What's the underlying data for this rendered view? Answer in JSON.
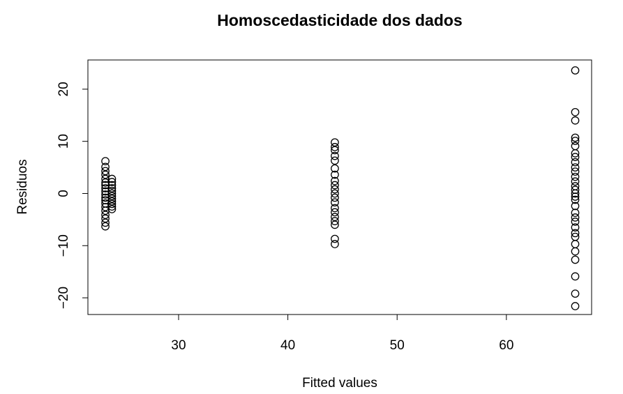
{
  "chart_data": {
    "type": "scatter",
    "title": "Homoscedasticidade dos dados",
    "xlabel": "Fitted values",
    "ylabel": "Residuos",
    "xlim": [
      21.7,
      67.8
    ],
    "ylim": [
      -23.2,
      25.6
    ],
    "xticks": [
      30,
      40,
      50,
      60
    ],
    "yticks": [
      -20,
      -10,
      0,
      10,
      20
    ],
    "grid": false,
    "legend": "none",
    "points": [
      {
        "x": 23.3,
        "y": 6.2
      },
      {
        "x": 23.3,
        "y": 5.1
      },
      {
        "x": 23.3,
        "y": 4.3
      },
      {
        "x": 23.3,
        "y": 3.6
      },
      {
        "x": 23.3,
        "y": 2.8
      },
      {
        "x": 23.3,
        "y": 2.1
      },
      {
        "x": 23.3,
        "y": 1.6
      },
      {
        "x": 23.3,
        "y": 1.0
      },
      {
        "x": 23.3,
        "y": 0.4
      },
      {
        "x": 23.3,
        "y": -0.2
      },
      {
        "x": 23.3,
        "y": -0.8
      },
      {
        "x": 23.3,
        "y": -1.3
      },
      {
        "x": 23.3,
        "y": -1.9
      },
      {
        "x": 23.3,
        "y": -2.6
      },
      {
        "x": 23.3,
        "y": -3.3
      },
      {
        "x": 23.3,
        "y": -4.1
      },
      {
        "x": 23.3,
        "y": -4.8
      },
      {
        "x": 23.3,
        "y": -5.6
      },
      {
        "x": 23.3,
        "y": -6.3
      },
      {
        "x": 23.9,
        "y": 2.8
      },
      {
        "x": 23.9,
        "y": 2.2
      },
      {
        "x": 23.9,
        "y": 1.6
      },
      {
        "x": 23.9,
        "y": 1.0
      },
      {
        "x": 23.9,
        "y": 0.5
      },
      {
        "x": 23.9,
        "y": 0.0
      },
      {
        "x": 23.9,
        "y": -0.5
      },
      {
        "x": 23.9,
        "y": -1.0
      },
      {
        "x": 23.9,
        "y": -1.5
      },
      {
        "x": 23.9,
        "y": -2.0
      },
      {
        "x": 23.9,
        "y": -2.5
      },
      {
        "x": 23.9,
        "y": -3.0
      },
      {
        "x": 44.3,
        "y": 9.8
      },
      {
        "x": 44.3,
        "y": 8.9
      },
      {
        "x": 44.3,
        "y": 8.3
      },
      {
        "x": 44.3,
        "y": 7.2
      },
      {
        "x": 44.3,
        "y": 6.3
      },
      {
        "x": 44.3,
        "y": 4.8
      },
      {
        "x": 44.3,
        "y": 3.6
      },
      {
        "x": 44.3,
        "y": 2.4
      },
      {
        "x": 44.3,
        "y": 1.6
      },
      {
        "x": 44.3,
        "y": 0.8
      },
      {
        "x": 44.3,
        "y": 0.0
      },
      {
        "x": 44.3,
        "y": -0.8
      },
      {
        "x": 44.3,
        "y": -1.7
      },
      {
        "x": 44.3,
        "y": -2.8
      },
      {
        "x": 44.3,
        "y": -3.6
      },
      {
        "x": 44.3,
        "y": -4.5
      },
      {
        "x": 44.3,
        "y": -5.3
      },
      {
        "x": 44.3,
        "y": -6.0
      },
      {
        "x": 44.3,
        "y": -8.7
      },
      {
        "x": 44.3,
        "y": -9.7
      },
      {
        "x": 66.3,
        "y": 23.6
      },
      {
        "x": 66.3,
        "y": 15.6
      },
      {
        "x": 66.3,
        "y": 14.0
      },
      {
        "x": 66.3,
        "y": 10.7
      },
      {
        "x": 66.3,
        "y": 10.1
      },
      {
        "x": 66.3,
        "y": 9.1
      },
      {
        "x": 66.3,
        "y": 7.7
      },
      {
        "x": 66.3,
        "y": 7.0
      },
      {
        "x": 66.3,
        "y": 6.0
      },
      {
        "x": 66.3,
        "y": 5.0
      },
      {
        "x": 66.3,
        "y": 4.2
      },
      {
        "x": 66.3,
        "y": 3.2
      },
      {
        "x": 66.3,
        "y": 2.3
      },
      {
        "x": 66.3,
        "y": 1.4
      },
      {
        "x": 66.3,
        "y": 0.7
      },
      {
        "x": 66.3,
        "y": 0.0
      },
      {
        "x": 66.3,
        "y": -0.6
      },
      {
        "x": 66.3,
        "y": -1.2
      },
      {
        "x": 66.3,
        "y": -2.4
      },
      {
        "x": 66.3,
        "y": -3.7
      },
      {
        "x": 66.3,
        "y": -4.6
      },
      {
        "x": 66.3,
        "y": -5.4
      },
      {
        "x": 66.3,
        "y": -6.5
      },
      {
        "x": 66.3,
        "y": -7.6
      },
      {
        "x": 66.3,
        "y": -8.3
      },
      {
        "x": 66.3,
        "y": -9.7
      },
      {
        "x": 66.3,
        "y": -11.1
      },
      {
        "x": 66.3,
        "y": -12.7
      },
      {
        "x": 66.3,
        "y": -15.9
      },
      {
        "x": 66.3,
        "y": -19.2
      },
      {
        "x": 66.3,
        "y": -21.6
      }
    ]
  }
}
